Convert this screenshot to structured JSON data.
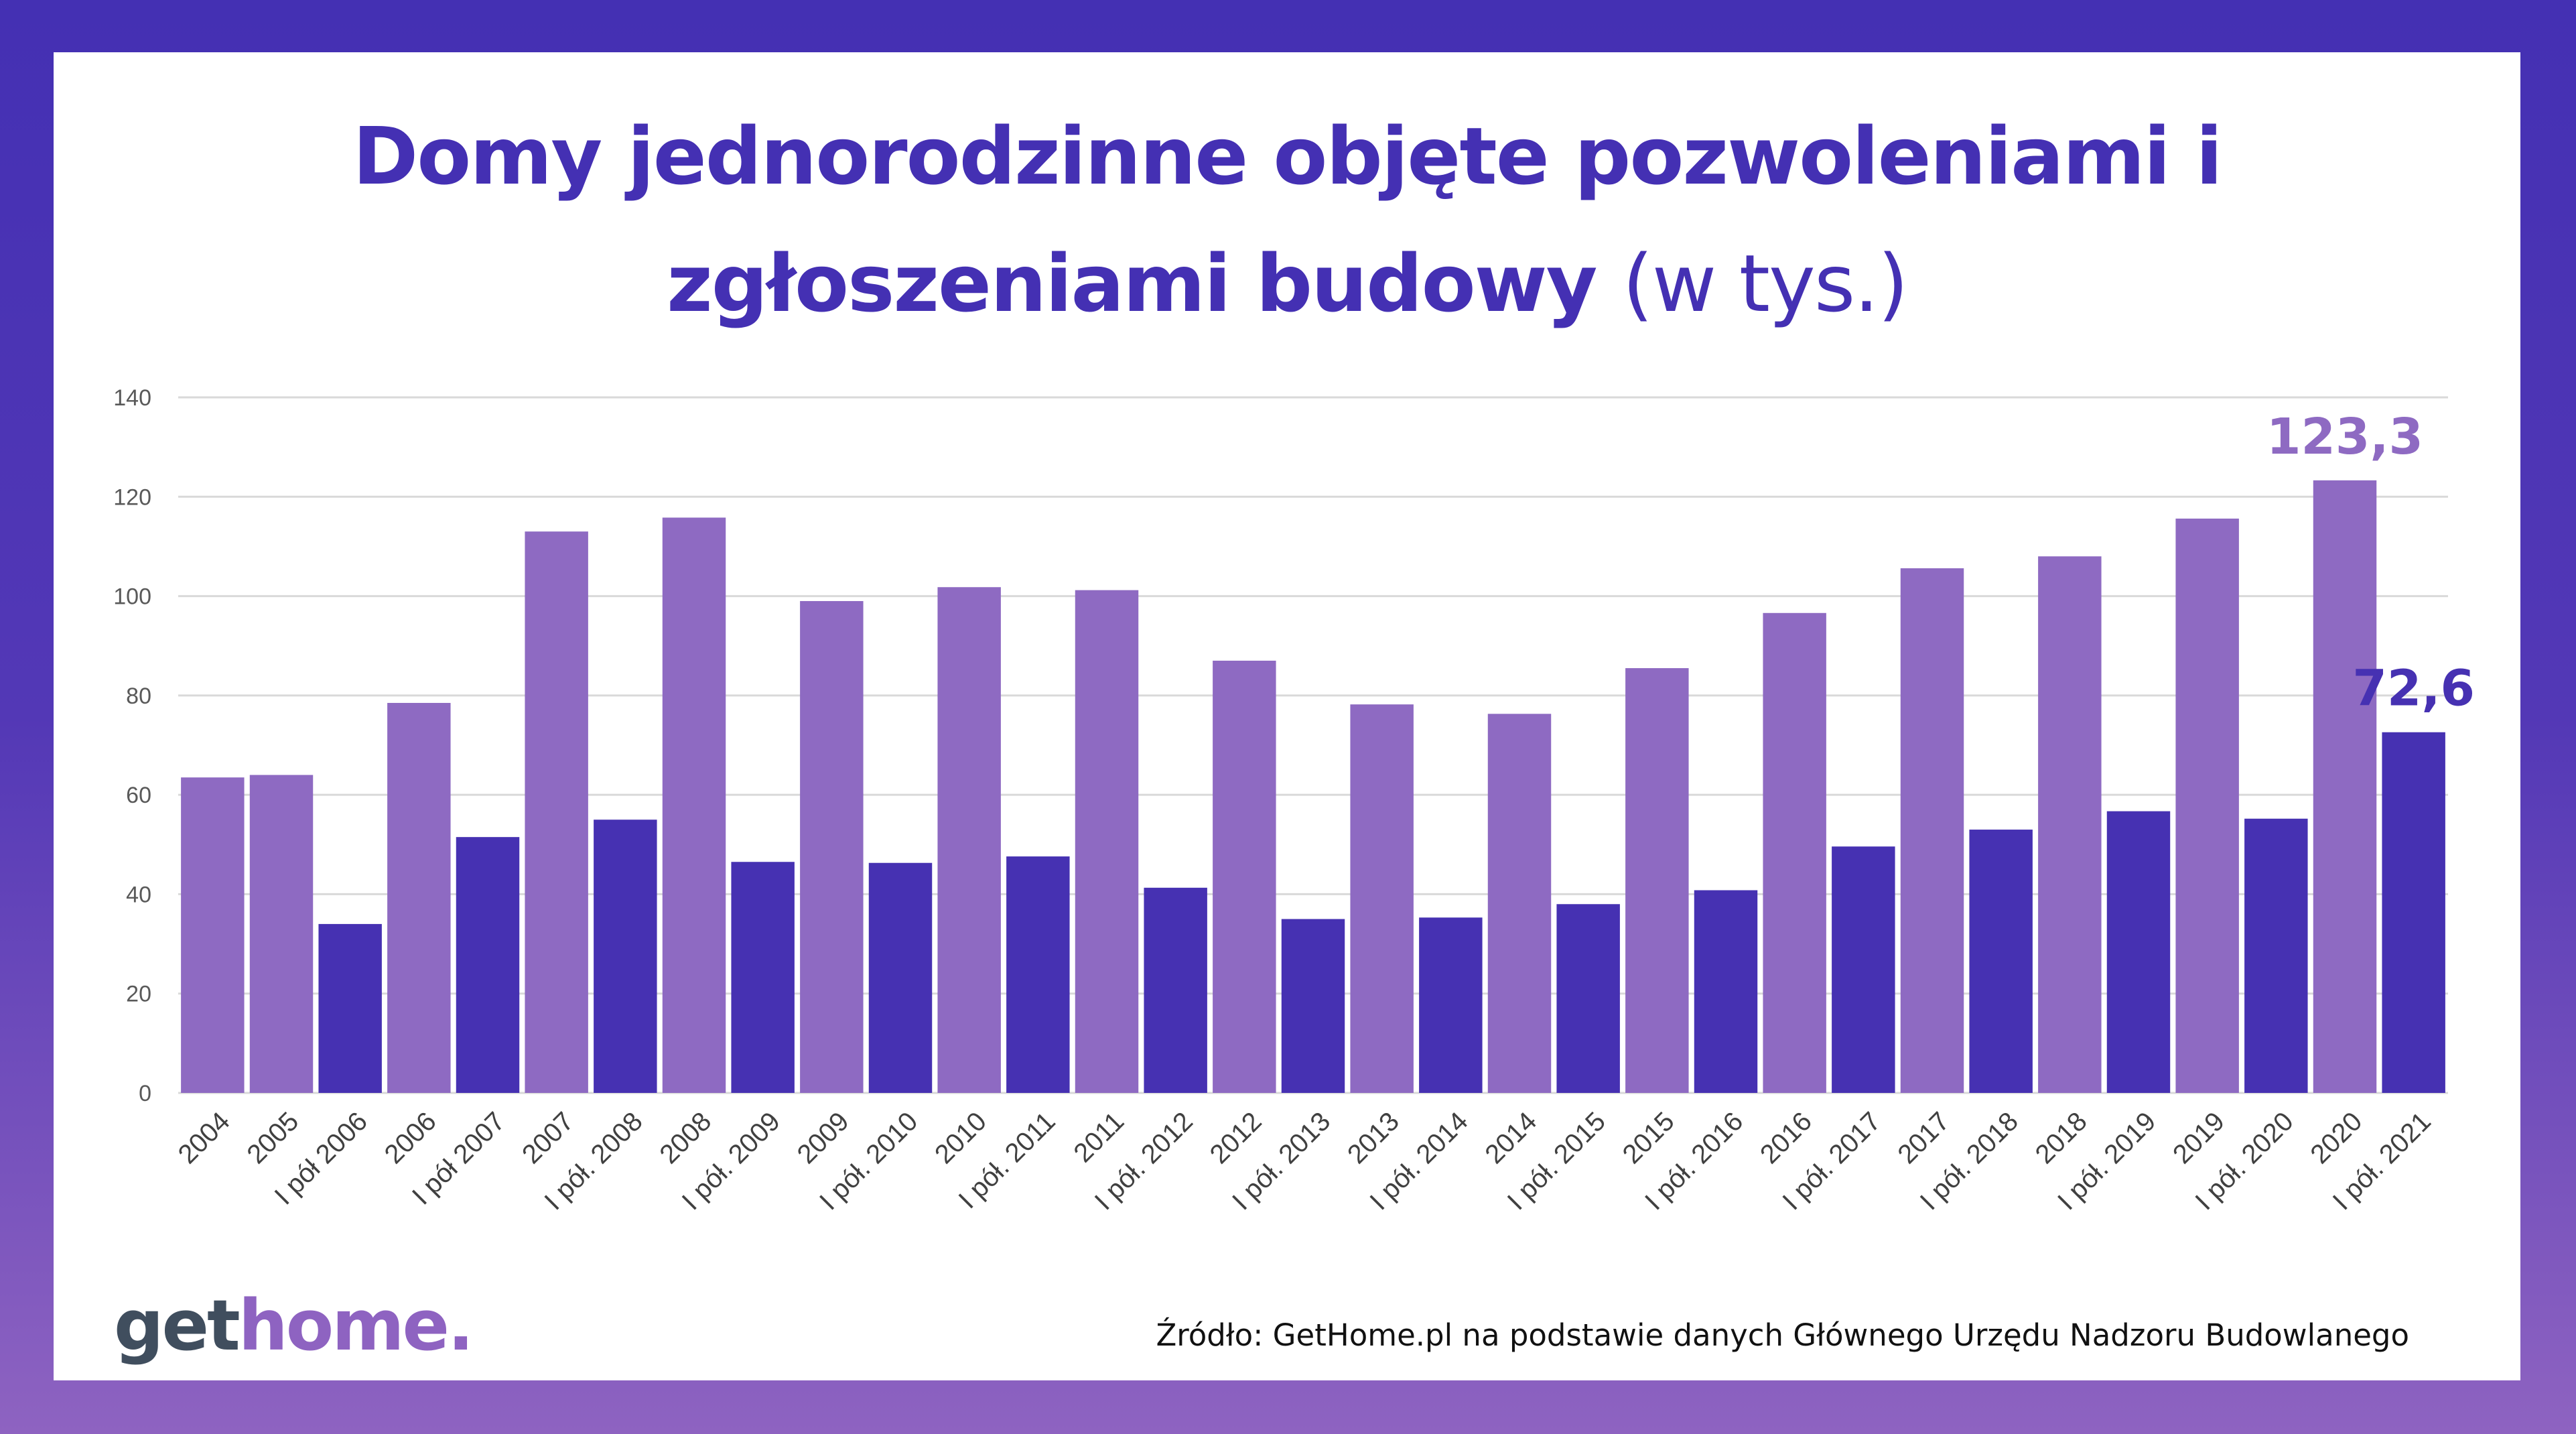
{
  "header": {
    "title_bold_line1": "Domy jednorodzinne objęte pozwoleniami i",
    "title_bold_line2": "zgłoszeniami budowy",
    "title_light": "(w tys.)"
  },
  "chart_data": {
    "type": "bar",
    "title": "Domy jednorodzinne objęte pozwoleniami i zgłoszeniami budowy (w tys.)",
    "ylim": [
      0,
      140
    ],
    "yticks": [
      0,
      20,
      40,
      60,
      80,
      100,
      120,
      140
    ],
    "grid": true,
    "categories": [
      "2004",
      "2005",
      "I pół 2006",
      "2006",
      "I pół 2007",
      "2007",
      "I pół. 2008",
      "2008",
      "I pół. 2009",
      "2009",
      "I pół. 2010",
      "2010",
      "I pół. 2011",
      "2011",
      "I pół. 2012",
      "2012",
      "I pół. 2013",
      "2013",
      "I pół. 2014",
      "2014",
      "I pół. 2015",
      "2015",
      "I pół. 2016",
      "2016",
      "I pół. 2017",
      "2017",
      "I pół. 2018",
      "2018",
      "I pół. 2019",
      "2019",
      "I pół. 2020",
      "2020",
      "I pół. 2021"
    ],
    "values": [
      63.5,
      64.0,
      34.0,
      78.5,
      51.5,
      113.0,
      55.0,
      115.8,
      46.5,
      99.0,
      46.3,
      101.8,
      47.6,
      101.2,
      41.3,
      87.0,
      35.0,
      78.2,
      35.3,
      76.3,
      38.0,
      85.5,
      40.8,
      96.6,
      49.6,
      105.6,
      53.0,
      108.0,
      56.7,
      115.6,
      55.2,
      123.3,
      72.6
    ],
    "bar_kinds": [
      "year",
      "year",
      "half",
      "year",
      "half",
      "year",
      "half",
      "year",
      "half",
      "year",
      "half",
      "year",
      "half",
      "year",
      "half",
      "year",
      "half",
      "year",
      "half",
      "year",
      "half",
      "year",
      "half",
      "year",
      "half",
      "year",
      "half",
      "year",
      "half",
      "year",
      "half",
      "year",
      "half"
    ],
    "colors": {
      "year": "#8E6AC2",
      "half": "#4631B2"
    },
    "data_labels": [
      {
        "index": 31,
        "text": "123,3",
        "color": "#8E6AC2"
      },
      {
        "index": 32,
        "text": "72,6",
        "color": "#4631B2"
      }
    ]
  },
  "footer": {
    "logo_get": "get",
    "logo_home": "home.",
    "source": "Źródło: GetHome.pl na podstawie danych Głównego Urzędu Nadzoru Budowlanego"
  }
}
